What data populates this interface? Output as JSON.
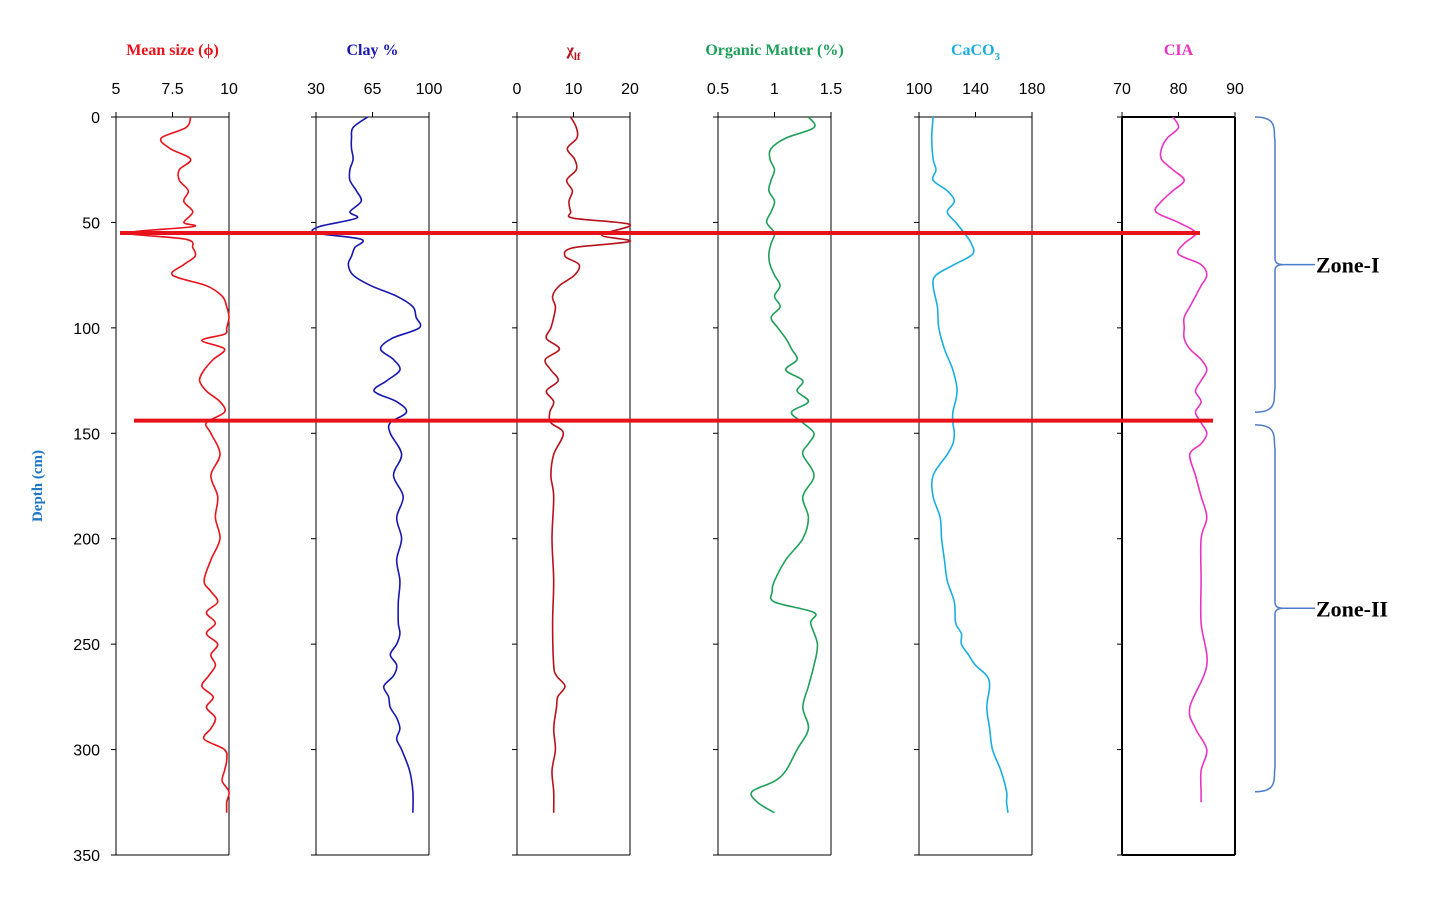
{
  "chart_data": {
    "type": "line",
    "ylabel": "Depth (cm)",
    "ylabel_color": "#1f77c4",
    "ylim": [
      0,
      350
    ],
    "yticks": [
      "0",
      "50",
      "100",
      "150",
      "200",
      "250",
      "300",
      "350"
    ],
    "boundaries": [
      {
        "depth": 55,
        "color": "#e8121b"
      },
      {
        "depth": 144,
        "color": "#e8121b"
      }
    ],
    "zones": [
      {
        "label": "Zone-I",
        "from": 0,
        "to": 140
      },
      {
        "label": "Zone-II",
        "from": 146,
        "to": 320
      }
    ],
    "panels": [
      {
        "title": "Mean size (ϕ)",
        "title_sub": "",
        "color": "#e8121b",
        "xlim": [
          5,
          10
        ],
        "xticks": [
          "5",
          "7.5",
          "10"
        ],
        "depth": [
          0,
          5,
          10,
          15,
          20,
          25,
          30,
          35,
          40,
          45,
          50,
          52,
          55,
          58,
          62,
          66,
          70,
          75,
          80,
          85,
          90,
          95,
          100,
          103,
          106,
          110,
          115,
          120,
          125,
          130,
          135,
          140,
          145,
          150,
          160,
          170,
          180,
          190,
          200,
          210,
          220,
          225,
          230,
          235,
          240,
          245,
          250,
          255,
          260,
          265,
          270,
          275,
          280,
          285,
          290,
          295,
          300,
          305,
          310,
          315,
          320,
          325,
          330
        ],
        "values": [
          8.3,
          8.1,
          7.0,
          7.4,
          8.3,
          7.8,
          7.8,
          8.2,
          8.0,
          8.4,
          8.0,
          8.4,
          5.5,
          8.1,
          8.4,
          8.5,
          8.0,
          7.5,
          9.0,
          9.7,
          9.9,
          10.0,
          9.9,
          9.8,
          8.8,
          9.8,
          9.3,
          8.9,
          8.7,
          9.0,
          9.6,
          9.8,
          9.0,
          9.2,
          9.6,
          9.2,
          9.5,
          9.4,
          9.6,
          9.2,
          8.9,
          9.2,
          9.5,
          9.0,
          9.4,
          9.0,
          9.5,
          9.2,
          9.4,
          9.1,
          8.8,
          9.3,
          9.0,
          9.4,
          9.2,
          8.9,
          9.8,
          9.9,
          9.8,
          9.7,
          10.0,
          9.9,
          9.9
        ]
      },
      {
        "title": "Clay %",
        "title_sub": "",
        "color": "#1717b0",
        "xlim": [
          30,
          100
        ],
        "xticks": [
          "30",
          "65",
          "100"
        ],
        "depth": [
          0,
          5,
          10,
          15,
          20,
          25,
          30,
          35,
          40,
          45,
          48,
          52,
          55,
          58,
          62,
          66,
          70,
          75,
          80,
          85,
          90,
          95,
          100,
          105,
          110,
          115,
          120,
          125,
          130,
          135,
          140,
          145,
          150,
          160,
          170,
          180,
          190,
          200,
          210,
          220,
          230,
          240,
          245,
          250,
          255,
          260,
          265,
          270,
          275,
          280,
          285,
          290,
          295,
          300,
          310,
          320,
          330
        ],
        "values": [
          62,
          53,
          52,
          52,
          53,
          51,
          51,
          55,
          58,
          51,
          55,
          32,
          30,
          58,
          54,
          52,
          50,
          53,
          64,
          80,
          90,
          92,
          94,
          77,
          70,
          78,
          82,
          74,
          66,
          80,
          86,
          76,
          76,
          83,
          78,
          84,
          80,
          83,
          80,
          82,
          81,
          81,
          82,
          80,
          76,
          80,
          78,
          72,
          75,
          76,
          80,
          82,
          80,
          83,
          88,
          90,
          90
        ]
      },
      {
        "title": "χ",
        "title_sub": "lf",
        "color": "#b5121b",
        "xlim": [
          0,
          20
        ],
        "xticks": [
          "0",
          "10",
          "20"
        ],
        "depth": [
          0,
          5,
          10,
          15,
          20,
          25,
          30,
          35,
          40,
          45,
          48,
          51,
          56,
          59,
          62,
          66,
          70,
          75,
          80,
          85,
          90,
          95,
          100,
          105,
          110,
          115,
          120,
          125,
          130,
          135,
          140,
          145,
          150,
          160,
          170,
          180,
          200,
          220,
          240,
          260,
          265,
          270,
          275,
          280,
          290,
          300,
          310,
          320,
          330
        ],
        "values": [
          9.5,
          10.5,
          10.6,
          8.9,
          10.2,
          10.5,
          8.8,
          9.8,
          9.2,
          9.5,
          10.0,
          20.0,
          15.0,
          20.0,
          10.0,
          8.5,
          11.0,
          10.2,
          7.5,
          6.3,
          6.8,
          6.5,
          6.0,
          5.2,
          7.5,
          5.0,
          6.0,
          7.3,
          5.2,
          6.5,
          5.8,
          6.0,
          8.2,
          6.5,
          6.0,
          6.5,
          6.2,
          6.5,
          6.3,
          6.5,
          7.0,
          8.5,
          7.2,
          7.0,
          6.5,
          6.8,
          6.2,
          6.5,
          6.5
        ]
      },
      {
        "title": "Organic Matter (%)",
        "title_sub": "",
        "color": "#1f9f5a",
        "xlim": [
          0.5,
          1.5
        ],
        "xticks": [
          "0.5",
          "1",
          "1.5"
        ],
        "depth": [
          0,
          5,
          10,
          15,
          20,
          25,
          30,
          35,
          40,
          45,
          50,
          55,
          60,
          65,
          70,
          75,
          80,
          85,
          90,
          95,
          100,
          105,
          110,
          115,
          120,
          125,
          130,
          135,
          140,
          145,
          150,
          155,
          160,
          170,
          180,
          190,
          200,
          210,
          220,
          225,
          230,
          235,
          240,
          250,
          260,
          270,
          280,
          290,
          300,
          310,
          315,
          320,
          325,
          330
        ],
        "values": [
          1.3,
          1.35,
          1.1,
          0.97,
          0.96,
          1.0,
          0.97,
          0.95,
          1.0,
          0.97,
          0.93,
          1.0,
          0.97,
          0.95,
          0.96,
          1.0,
          1.05,
          1.0,
          1.05,
          0.97,
          1.03,
          1.1,
          1.15,
          1.2,
          1.1,
          1.25,
          1.2,
          1.3,
          1.15,
          1.25,
          1.35,
          1.3,
          1.25,
          1.35,
          1.25,
          1.3,
          1.25,
          1.1,
          1.0,
          0.98,
          1.0,
          1.35,
          1.32,
          1.38,
          1.35,
          1.3,
          1.25,
          1.3,
          1.2,
          1.1,
          1.0,
          0.8,
          0.85,
          1.0
        ]
      },
      {
        "title": "CaCO",
        "title_sub": "3",
        "color": "#1aaee0",
        "xlim": [
          100,
          180
        ],
        "xticks": [
          "100",
          "140",
          "180"
        ],
        "depth": [
          0,
          10,
          20,
          25,
          30,
          35,
          40,
          45,
          50,
          55,
          60,
          65,
          70,
          75,
          80,
          90,
          100,
          110,
          120,
          130,
          140,
          145,
          150,
          155,
          160,
          170,
          180,
          190,
          200,
          210,
          220,
          230,
          240,
          245,
          250,
          255,
          260,
          265,
          270,
          280,
          290,
          300,
          310,
          320,
          325,
          330
        ],
        "values": [
          110,
          109,
          110,
          112,
          110,
          120,
          125,
          120,
          126,
          132,
          137,
          138,
          125,
          112,
          110,
          113,
          114,
          118,
          124,
          127,
          124,
          124,
          125,
          124,
          120,
          110,
          110,
          115,
          116,
          118,
          120,
          125,
          126,
          130,
          130,
          135,
          140,
          148,
          150,
          148,
          150,
          152,
          158,
          162,
          162,
          163
        ]
      },
      {
        "title": "CIA",
        "title_sub": "",
        "color": "#ea33c2",
        "xlim": [
          70,
          90
        ],
        "xticks": [
          "70",
          "80",
          "90"
        ],
        "depth": [
          0,
          5,
          10,
          15,
          20,
          25,
          30,
          35,
          40,
          45,
          50,
          55,
          60,
          65,
          70,
          75,
          80,
          85,
          90,
          95,
          100,
          105,
          110,
          115,
          120,
          125,
          130,
          135,
          140,
          145,
          150,
          155,
          160,
          170,
          180,
          190,
          200,
          220,
          240,
          260,
          280,
          290,
          300,
          310,
          320,
          325
        ],
        "values": [
          79,
          80,
          78,
          77,
          77,
          79,
          81,
          79,
          77,
          76,
          80,
          83,
          81,
          80,
          84,
          85,
          84,
          83,
          82,
          81,
          81,
          81,
          82,
          84,
          85,
          84,
          83,
          84,
          83,
          84,
          85,
          84,
          82,
          83,
          84,
          85,
          84,
          84,
          84,
          85,
          82,
          83,
          85,
          84,
          84,
          84
        ]
      }
    ]
  }
}
